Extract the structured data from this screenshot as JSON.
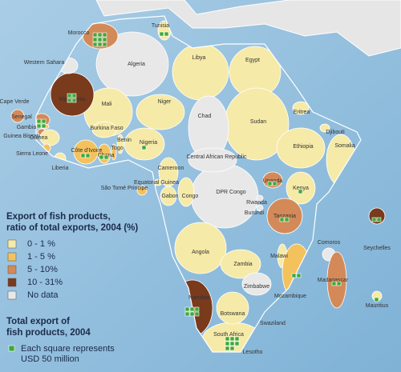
{
  "legend": {
    "title": [
      "Export of fish products,",
      "ratio of total exports, 2004 (%)"
    ],
    "items": [
      {
        "label": "0  -  1 %",
        "color": "#f6eaa8"
      },
      {
        "label": "1  -  5 %",
        "color": "#f4c25c"
      },
      {
        "label": "5  -  10%",
        "color": "#d38a58"
      },
      {
        "label": "10  -  31%",
        "color": "#7a3a1c"
      },
      {
        "label": "No data",
        "color": "#e8e8e8"
      }
    ],
    "squares_title": [
      "Total export of",
      "fish products, 2004"
    ],
    "square_note": [
      "Each square represents",
      "USD 50 million"
    ],
    "square_color": "#3fa83a"
  },
  "countries": [
    {
      "name": "Algeria",
      "class": 4
    },
    {
      "name": "Libya",
      "class": 0
    },
    {
      "name": "Egypt",
      "class": 0
    },
    {
      "name": "Sudan",
      "class": 0
    },
    {
      "name": "DPR Congo",
      "class": 4
    },
    {
      "name": "Chad",
      "class": 4
    },
    {
      "name": "Mali",
      "class": 0
    },
    {
      "name": "Niger",
      "class": 0
    },
    {
      "name": "Angola",
      "class": 0
    },
    {
      "name": "South Africa",
      "class": 0,
      "squares": 8
    },
    {
      "name": "Namibia",
      "class": 3,
      "squares": 6
    },
    {
      "name": "Ethiopia",
      "class": 0
    },
    {
      "name": "Somalia",
      "class": 0
    },
    {
      "name": "Nigeria",
      "class": 0,
      "squares": 1
    },
    {
      "name": "Central African Republic",
      "class": 4
    },
    {
      "name": "Mauritania",
      "class": 3,
      "squares": 4
    },
    {
      "name": "Morocco",
      "class": 2,
      "squares": 9
    },
    {
      "name": "Western Sahara",
      "class": 4
    },
    {
      "name": "Tunisia",
      "class": 0,
      "squares": 2
    },
    {
      "name": "Eritrea",
      "class": 0
    },
    {
      "name": "Djibouti",
      "class": 0
    },
    {
      "name": "Cape Verde",
      "class": 2
    },
    {
      "name": "Senegal",
      "class": 2,
      "squares": 4
    },
    {
      "name": "Gambia",
      "class": 1
    },
    {
      "name": "Guinea Bissau",
      "class": 2
    },
    {
      "name": "Guinea",
      "class": 0
    },
    {
      "name": "Sierra Leone",
      "class": 1
    },
    {
      "name": "Liberia",
      "class": 0
    },
    {
      "name": "Côte d'Ivoire",
      "class": 1,
      "squares": 2
    },
    {
      "name": "Burkina Faso",
      "class": 0
    },
    {
      "name": "Ghana",
      "class": 1,
      "squares": 2
    },
    {
      "name": "Togo",
      "class": 1
    },
    {
      "name": "Benin",
      "class": 0
    },
    {
      "name": "Cameroon",
      "class": 0
    },
    {
      "name": "São Tomé Principe",
      "class": 1
    },
    {
      "name": "Equatorial Guinea",
      "class": 0
    },
    {
      "name": "Gabon",
      "class": 0
    },
    {
      "name": "Congo",
      "class": 0
    },
    {
      "name": "Uganda",
      "class": 2,
      "squares": 2
    },
    {
      "name": "Kenya",
      "class": 0,
      "squares": 1
    },
    {
      "name": "Rwanda",
      "class": 4
    },
    {
      "name": "Burundi",
      "class": 4
    },
    {
      "name": "Tanzania",
      "class": 2,
      "squares": 2
    },
    {
      "name": "Zambia",
      "class": 0
    },
    {
      "name": "Malawi",
      "class": 0
    },
    {
      "name": "Comoros",
      "class": 4
    },
    {
      "name": "Seychelles",
      "class": 3,
      "squares": 2
    },
    {
      "name": "Mozambique",
      "class": 1,
      "squares": 2
    },
    {
      "name": "Madagascar",
      "class": 2,
      "squares": 2
    },
    {
      "name": "Mauritius",
      "class": 0,
      "squares": 1
    },
    {
      "name": "Zimbabwe",
      "class": 4
    },
    {
      "name": "Botswana",
      "class": 0
    },
    {
      "name": "Swaziland",
      "class": 0
    },
    {
      "name": "Lesotho",
      "class": 0
    }
  ]
}
